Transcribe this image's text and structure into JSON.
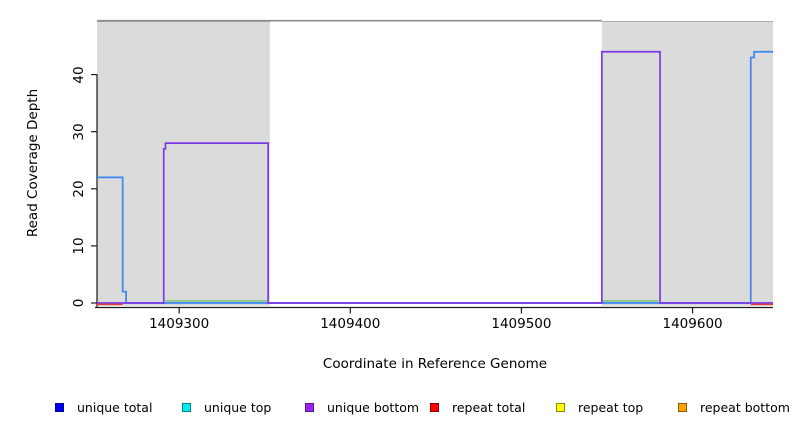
{
  "axes": {
    "y_title": "Read Coverage Depth",
    "x_title": "Coordinate in Reference Genome"
  },
  "legend": {
    "items": [
      {
        "label": "unique total",
        "fill": "#0000F5",
        "border": "#0000A3"
      },
      {
        "label": "unique top",
        "fill": "#00E8F0",
        "border": "#00868B"
      },
      {
        "label": "unique bottom",
        "fill": "#A020F0",
        "border": "#551A8B"
      },
      {
        "label": "repeat total",
        "fill": "#FF0000",
        "border": "#8B0000"
      },
      {
        "label": "repeat top",
        "fill": "#FFFF00",
        "border": "#8B8B00"
      },
      {
        "label": "repeat bottom",
        "fill": "#FFA500",
        "border": "#8B5A00"
      }
    ]
  },
  "chart_data": {
    "type": "line",
    "title": "",
    "xlabel": "Coordinate in Reference Genome",
    "ylabel": "Read Coverage Depth",
    "xlim": [
      1409252,
      1409647
    ],
    "ylim": [
      0,
      49
    ],
    "x_ticks": [
      1409300,
      1409400,
      1409500,
      1409600
    ],
    "y_ticks": [
      0,
      10,
      20,
      30,
      40
    ],
    "grid": false,
    "legend_position": "bottom",
    "shaded_regions": {
      "color": "#DBDBDB",
      "edge_color": "#ACACAC",
      "x_ranges": [
        [
          1409252,
          1409353
        ],
        [
          1409547,
          1409647
        ]
      ]
    },
    "offscale_top_line": {
      "color": "#8C8C8C",
      "x_range": [
        1409252,
        1409547
      ]
    },
    "series": [
      {
        "name": "green baseline segments",
        "color": "#74C476",
        "value": 0.35,
        "x_ranges": [
          [
            1409292,
            1409352
          ],
          [
            1409547,
            1409580
          ]
        ]
      },
      {
        "name": "blue coverage line",
        "color": "#3D85F2",
        "steps": [
          [
            1409252,
            22
          ],
          [
            1409267,
            22
          ],
          [
            1409267,
            2
          ],
          [
            1409269,
            2
          ],
          [
            1409269,
            0
          ],
          [
            1409634,
            0
          ],
          [
            1409634,
            43
          ],
          [
            1409636,
            43
          ],
          [
            1409636,
            44
          ],
          [
            1409647,
            44
          ]
        ]
      },
      {
        "name": "purple coverage line",
        "color": "#7B3AE8",
        "steps": [
          [
            1409252,
            0
          ],
          [
            1409291,
            0
          ],
          [
            1409291,
            27
          ],
          [
            1409292,
            27
          ],
          [
            1409292,
            28
          ],
          [
            1409352,
            28
          ],
          [
            1409352,
            0
          ],
          [
            1409547,
            0
          ],
          [
            1409547,
            44
          ],
          [
            1409581,
            44
          ],
          [
            1409581,
            0
          ],
          [
            1409647,
            0
          ]
        ]
      },
      {
        "name": "red baseline segments",
        "color": "#E03C3C",
        "value": -0.25,
        "x_ranges": [
          [
            1409252,
            1409267
          ],
          [
            1409634,
            1409647
          ]
        ]
      }
    ]
  }
}
